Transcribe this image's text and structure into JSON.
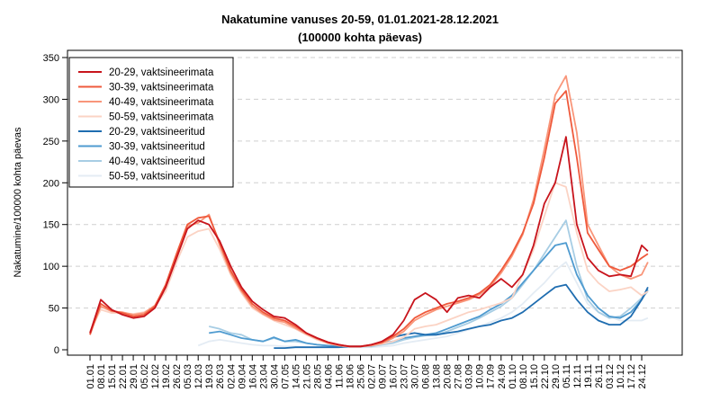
{
  "chart_data": {
    "type": "line",
    "title": "Nakatumine vanuses 20-59, 01.01.2021-28.12.2021",
    "subtitle": "(100000 kohta päevas)",
    "xlabel": "",
    "ylabel": "Nakatumine/100000 kohta päevas",
    "ylim": [
      0,
      350
    ],
    "yticks": [
      0,
      50,
      100,
      150,
      200,
      250,
      300,
      350
    ],
    "grid": "horizontal dashed",
    "legend_position": "top-left",
    "x_tick_labels": [
      "01.01",
      "08.01",
      "15.01",
      "22.01",
      "29.01",
      "05.02",
      "12.02",
      "19.02",
      "26.02",
      "05.03",
      "12.03",
      "19.03",
      "26.03",
      "02.04",
      "09.04",
      "16.04",
      "23.04",
      "30.04",
      "07.05",
      "14.05",
      "21.05",
      "28.05",
      "04.06",
      "11.06",
      "18.06",
      "25.06",
      "02.07",
      "09.07",
      "16.07",
      "23.07",
      "30.07",
      "06.08",
      "13.08",
      "20.08",
      "27.08",
      "03.09",
      "10.09",
      "17.09",
      "24.09",
      "01.10",
      "08.10",
      "15.10",
      "22.10",
      "29.10",
      "05.11",
      "12.11",
      "19.11",
      "26.11",
      "03.12",
      "10.12",
      "17.12",
      "24.12"
    ],
    "x": [
      "01.01",
      "08.01",
      "15.01",
      "22.01",
      "29.01",
      "05.02",
      "12.02",
      "19.02",
      "26.02",
      "05.03",
      "12.03",
      "19.03",
      "26.03",
      "02.04",
      "09.04",
      "16.04",
      "23.04",
      "30.04",
      "07.05",
      "14.05",
      "21.05",
      "28.05",
      "04.06",
      "11.06",
      "18.06",
      "25.06",
      "02.07",
      "09.07",
      "16.07",
      "23.07",
      "30.07",
      "06.08",
      "13.08",
      "20.08",
      "27.08",
      "03.09",
      "10.09",
      "17.09",
      "24.09",
      "01.10",
      "08.10",
      "15.10",
      "22.10",
      "29.10",
      "05.11",
      "12.11",
      "19.11",
      "26.11",
      "03.12",
      "10.12",
      "17.12",
      "24.12",
      "28.12"
    ],
    "series": [
      {
        "name": "20-29, vaktsineerimata",
        "color": "#c8141c",
        "values": [
          20,
          60,
          48,
          42,
          38,
          40,
          50,
          75,
          110,
          145,
          155,
          150,
          130,
          100,
          75,
          58,
          48,
          40,
          38,
          30,
          20,
          14,
          9,
          6,
          4,
          4,
          6,
          10,
          18,
          35,
          60,
          68,
          60,
          45,
          62,
          65,
          62,
          75,
          85,
          75,
          90,
          125,
          175,
          200,
          255,
          150,
          110,
          95,
          88,
          90,
          88,
          125,
          118
        ]
      },
      {
        "name": "30-39, vaktsineerimata",
        "color": "#ef5a3c",
        "values": [
          18,
          55,
          47,
          44,
          40,
          42,
          52,
          78,
          115,
          150,
          158,
          160,
          128,
          95,
          72,
          55,
          45,
          38,
          35,
          28,
          20,
          14,
          9,
          6,
          4,
          4,
          6,
          9,
          16,
          25,
          38,
          45,
          50,
          55,
          58,
          62,
          68,
          78,
          95,
          115,
          140,
          175,
          230,
          295,
          310,
          230,
          140,
          120,
          100,
          95,
          100,
          110,
          115
        ]
      },
      {
        "name": "40-49, vaktsineerimata",
        "color": "#f9967a",
        "values": [
          20,
          52,
          46,
          45,
          42,
          44,
          53,
          76,
          112,
          148,
          152,
          162,
          125,
          92,
          70,
          52,
          43,
          36,
          33,
          26,
          19,
          13,
          8,
          5,
          4,
          4,
          5,
          8,
          14,
          22,
          35,
          42,
          48,
          52,
          56,
          60,
          66,
          76,
          92,
          112,
          138,
          180,
          240,
          305,
          328,
          260,
          150,
          125,
          100,
          90,
          85,
          90,
          105
        ]
      },
      {
        "name": "50-59, vaktsineerimata",
        "color": "#fbd3c4",
        "values": [
          22,
          48,
          44,
          44,
          43,
          45,
          52,
          70,
          105,
          135,
          142,
          145,
          120,
          90,
          68,
          50,
          42,
          35,
          30,
          25,
          18,
          12,
          8,
          5,
          4,
          4,
          5,
          7,
          10,
          15,
          25,
          28,
          30,
          35,
          40,
          45,
          48,
          52,
          56,
          62,
          90,
          120,
          160,
          200,
          195,
          140,
          95,
          80,
          70,
          72,
          75,
          65,
          70
        ]
      },
      {
        "name": "20-29, vaktsineeritud",
        "color": "#1f6db0",
        "values": [
          null,
          null,
          null,
          null,
          null,
          null,
          null,
          null,
          null,
          null,
          null,
          null,
          null,
          null,
          null,
          null,
          null,
          2,
          2,
          3,
          3,
          3,
          3,
          3,
          4,
          4,
          5,
          10,
          15,
          18,
          20,
          18,
          18,
          20,
          22,
          25,
          28,
          30,
          35,
          38,
          45,
          55,
          65,
          75,
          78,
          60,
          45,
          35,
          30,
          30,
          40,
          60,
          75
        ]
      },
      {
        "name": "30-39, vaktsineeritud",
        "color": "#4f9bd0",
        "values": [
          null,
          null,
          null,
          null,
          null,
          null,
          null,
          null,
          null,
          null,
          null,
          20,
          22,
          18,
          14,
          12,
          10,
          15,
          10,
          12,
          8,
          6,
          5,
          4,
          4,
          4,
          5,
          8,
          10,
          14,
          16,
          18,
          20,
          25,
          30,
          35,
          40,
          48,
          55,
          65,
          80,
          95,
          110,
          125,
          128,
          90,
          65,
          50,
          40,
          38,
          45,
          60,
          72
        ]
      },
      {
        "name": "40-49, vaktsineeritud",
        "color": "#a7cde4",
        "values": [
          null,
          null,
          null,
          null,
          null,
          null,
          null,
          null,
          null,
          null,
          null,
          28,
          25,
          20,
          18,
          12,
          10,
          14,
          10,
          10,
          8,
          6,
          5,
          4,
          4,
          4,
          4,
          6,
          8,
          12,
          15,
          17,
          18,
          22,
          27,
          32,
          38,
          45,
          52,
          62,
          78,
          95,
          115,
          135,
          155,
          100,
          60,
          45,
          38,
          40,
          50,
          62,
          70
        ]
      },
      {
        "name": "50-59, vaktsineeritud",
        "color": "#e4ecf4",
        "values": [
          null,
          null,
          null,
          null,
          null,
          null,
          null,
          null,
          null,
          null,
          5,
          10,
          12,
          10,
          8,
          6,
          5,
          5,
          4,
          4,
          3,
          3,
          3,
          3,
          3,
          3,
          3,
          4,
          5,
          8,
          10,
          12,
          14,
          16,
          20,
          24,
          28,
          33,
          38,
          45,
          55,
          68,
          80,
          95,
          105,
          80,
          55,
          45,
          40,
          35,
          35,
          35,
          38
        ]
      }
    ]
  }
}
